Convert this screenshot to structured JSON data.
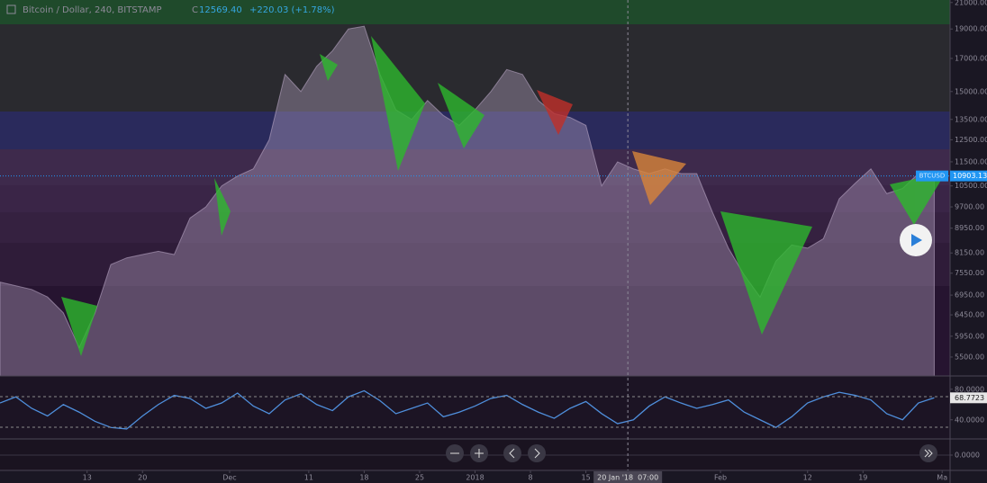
{
  "chart_data": [
    {
      "type": "area",
      "title": "Bitcoin / Dollar, 240, BITSTAMP",
      "close_label": "C",
      "close": "12569.40",
      "change": "+220.03 (+1.78%)",
      "symbol_tag": "BTCUSD",
      "last_price": {
        "value": 10903.13,
        "label": "10903.13"
      },
      "crosshair": {
        "x": 80.3,
        "label": "20 Jan '18  07:00"
      },
      "log_scale": true,
      "color": "#b9a6c4",
      "x": [
        1,
        3,
        5,
        7,
        9,
        11,
        13,
        15,
        17,
        19,
        21,
        23,
        25,
        27,
        29,
        31,
        33,
        35,
        37,
        39,
        41,
        43,
        45,
        47,
        49,
        51,
        53,
        55,
        57,
        59,
        61,
        63,
        65,
        67,
        69,
        71,
        73,
        75,
        77,
        79,
        81,
        83,
        85,
        87,
        89,
        91,
        93,
        95,
        97,
        99,
        101,
        103,
        105,
        107,
        109,
        111,
        113,
        115,
        117,
        119
      ],
      "values": [
        7300,
        7200,
        7100,
        6900,
        6500,
        5700,
        6500,
        7800,
        8000,
        8100,
        8200,
        8100,
        9300,
        9700,
        10500,
        10900,
        11200,
        12500,
        16000,
        15000,
        16500,
        17500,
        19000,
        19200,
        16000,
        14000,
        13500,
        14500,
        13700,
        13200,
        14000,
        15000,
        16300,
        16000,
        14500,
        13800,
        13600,
        13200,
        10500,
        11500,
        11200,
        11000,
        11200,
        11000,
        11000,
        9500,
        8300,
        7500,
        6900,
        7900,
        8400,
        8300,
        8600,
        10000,
        10600,
        11200,
        10200,
        10400,
        11000,
        10900
      ],
      "xlim": [
        1,
        121
      ],
      "xticks": [
        {
          "value": 12,
          "label": "13"
        },
        {
          "value": 19,
          "label": "20"
        },
        {
          "value": 30,
          "label": "Dec"
        },
        {
          "value": 40,
          "label": "11"
        },
        {
          "value": 47,
          "label": "18"
        },
        {
          "value": 54,
          "label": "25"
        },
        {
          "value": 61,
          "label": "2018"
        },
        {
          "value": 68,
          "label": "8"
        },
        {
          "value": 75,
          "label": "15"
        },
        {
          "value": 92,
          "label": "Feb"
        },
        {
          "value": 103,
          "label": "12"
        },
        {
          "value": 110,
          "label": "19"
        },
        {
          "value": 120,
          "label": "Ma"
        }
      ],
      "ylim": [
        5120,
        21200
      ],
      "yticks": [
        {
          "value": 21000,
          "label": "21000.00"
        },
        {
          "value": 19000,
          "label": "19000.00"
        },
        {
          "value": 17000,
          "label": "17000.00"
        },
        {
          "value": 15000,
          "label": "15000.00"
        },
        {
          "value": 13500,
          "label": "13500.00"
        },
        {
          "value": 12500,
          "label": "12500.00"
        },
        {
          "value": 11500,
          "label": "11500.00"
        },
        {
          "value": 10500,
          "label": "10500.00"
        },
        {
          "value": 9700,
          "label": "9700.00"
        },
        {
          "value": 8950,
          "label": "8950.00"
        },
        {
          "value": 8150,
          "label": "8150.00"
        },
        {
          "value": 7550,
          "label": "7550.00"
        },
        {
          "value": 6950,
          "label": "6950.00"
        },
        {
          "value": 6450,
          "label": "6450.00"
        },
        {
          "value": 5950,
          "label": "5950.00"
        },
        {
          "value": 5500,
          "label": "5500.00"
        }
      ]
    },
    {
      "type": "line",
      "color": "#4f8fdc",
      "values": [
        62,
        70,
        55,
        45,
        60,
        50,
        38,
        30,
        28,
        45,
        60,
        72,
        68,
        55,
        62,
        75,
        58,
        48,
        66,
        74,
        60,
        52,
        70,
        78,
        65,
        48,
        55,
        62,
        44,
        50,
        58,
        68,
        72,
        60,
        50,
        42,
        55,
        64,
        48,
        35,
        40,
        58,
        70,
        62,
        55,
        60,
        66,
        50,
        40,
        30,
        44,
        62,
        70,
        76,
        72,
        66,
        48,
        40,
        62,
        68.7723
      ],
      "last_value": {
        "value": 68.7723,
        "label": "68.7723"
      },
      "ylim": [
        15,
        95
      ],
      "yticks": [
        {
          "value": 80,
          "label": "80.0000"
        },
        {
          "value": 40,
          "label": "40.0000"
        }
      ]
    },
    {
      "type": "line",
      "ylim": [
        -1,
        1
      ],
      "yticks": [
        {
          "value": 0,
          "label": "0.0000"
        }
      ]
    }
  ]
}
